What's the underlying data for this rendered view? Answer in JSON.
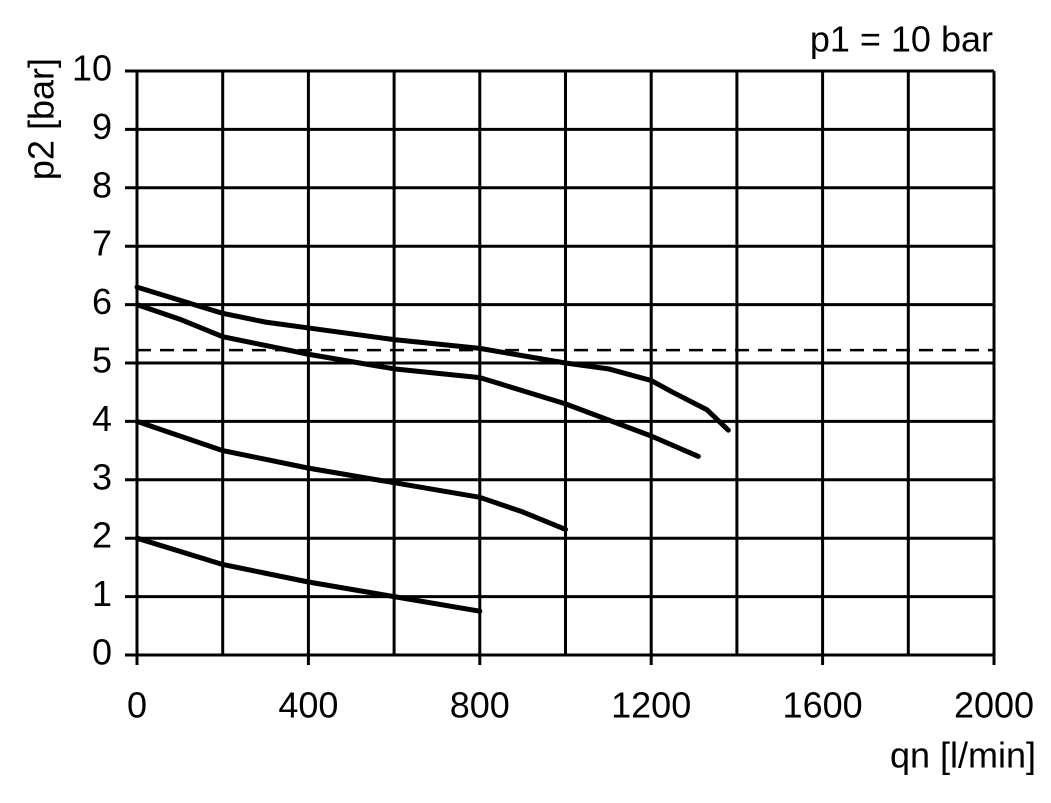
{
  "chart_data": {
    "type": "line",
    "annotation": "p1 = 10 bar",
    "ylabel": "p2 [bar]",
    "xlabel": "qn [l/min]",
    "xlim": [
      0,
      2000
    ],
    "xticks": [
      0,
      400,
      800,
      1200,
      1600,
      2000
    ],
    "xminorticks": [
      200,
      600,
      1000,
      1400,
      1800
    ],
    "ylim": [
      0,
      10
    ],
    "yticks": [
      0,
      1,
      2,
      3,
      4,
      5,
      6,
      7,
      8,
      9,
      10
    ],
    "grid": true,
    "series": [
      {
        "color": "#000000",
        "x": [
          0,
          200,
          300,
          400,
          600,
          800,
          1000,
          1100,
          1200,
          1250,
          1330,
          1380
        ],
        "values": [
          6.3,
          5.85,
          5.7,
          5.6,
          5.4,
          5.25,
          5.0,
          4.9,
          4.7,
          4.5,
          4.2,
          3.85
        ]
      },
      {
        "color": "#000000",
        "x": [
          0,
          100,
          200,
          300,
          400,
          600,
          800,
          1000,
          1200,
          1310
        ],
        "values": [
          6.0,
          5.75,
          5.45,
          5.3,
          5.15,
          4.9,
          4.75,
          4.3,
          3.75,
          3.4
        ]
      },
      {
        "color": "#000000",
        "x": [
          0,
          200,
          300,
          400,
          600,
          800,
          900,
          1000
        ],
        "values": [
          4.0,
          3.5,
          3.35,
          3.2,
          2.95,
          2.7,
          2.45,
          2.15
        ]
      },
      {
        "color": "#000000",
        "x": [
          0,
          200,
          300,
          400,
          600,
          800
        ],
        "values": [
          2.0,
          1.55,
          1.4,
          1.25,
          1.0,
          0.75
        ]
      },
      {
        "color": "#000000",
        "dashed": true,
        "x": [
          0,
          2000
        ],
        "values": [
          5.22,
          5.22
        ]
      }
    ]
  }
}
